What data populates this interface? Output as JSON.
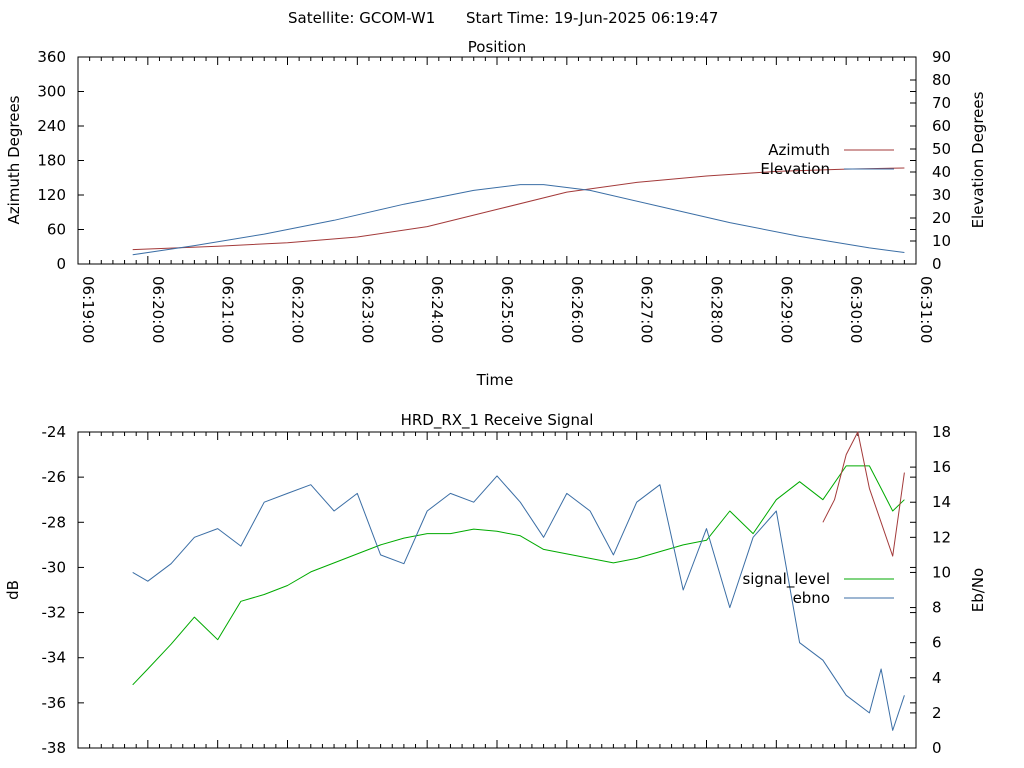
{
  "header": {
    "satellite": "Satellite: GCOM-W1",
    "start_time": "Start Time: 19-Jun-2025 06:19:47"
  },
  "chart_data": [
    {
      "type": "line",
      "title": "Position",
      "xlabel": "Time",
      "ylabel": "Azimuth Degrees",
      "ylabel_right": "Elevation Degrees",
      "x_ticks": [
        "06:19:00",
        "06:20:00",
        "06:21:00",
        "06:22:00",
        "06:23:00",
        "06:24:00",
        "06:25:00",
        "06:26:00",
        "06:27:00",
        "06:28:00",
        "06:29:00",
        "06:30:00",
        "06:31:00"
      ],
      "y_ticks": [
        "0",
        "60",
        "120",
        "180",
        "240",
        "300",
        "360"
      ],
      "y2_ticks": [
        "0",
        "10",
        "20",
        "30",
        "40",
        "50",
        "60",
        "70",
        "80",
        "90"
      ],
      "xlim_seconds": [
        0,
        720
      ],
      "ylim": [
        0,
        360
      ],
      "y2lim": [
        0,
        90
      ],
      "grid": false,
      "legend_position": "right",
      "series": [
        {
          "name": "Azimuth",
          "axis": "left",
          "color": "#a33a3a",
          "x_seconds": [
            47,
            120,
            180,
            240,
            300,
            360,
            420,
            480,
            540,
            600,
            660,
            710
          ],
          "values": [
            25,
            31,
            37,
            47,
            65,
            95,
            125,
            142,
            153,
            161,
            165,
            167
          ]
        },
        {
          "name": "Elevation",
          "axis": "right",
          "color": "#3b6ea5",
          "x_seconds": [
            47,
            100,
            160,
            220,
            280,
            340,
            380,
            400,
            440,
            500,
            560,
            620,
            680,
            710
          ],
          "values": [
            4,
            8,
            13,
            19,
            26,
            32,
            34.5,
            34.5,
            32,
            25,
            18,
            12,
            7,
            5
          ]
        }
      ]
    },
    {
      "type": "line",
      "title": "HRD_RX_1 Receive Signal",
      "xlabel": "",
      "ylabel": "dB",
      "ylabel_right": "Eb/No",
      "y_ticks": [
        "-24",
        "-26",
        "-28",
        "-30",
        "-32",
        "-34",
        "-36",
        "-38"
      ],
      "y2_ticks": [
        "0",
        "2",
        "4",
        "6",
        "8",
        "10",
        "12",
        "14",
        "16",
        "18"
      ],
      "xlim_seconds": [
        0,
        720
      ],
      "ylim": [
        -38,
        -24
      ],
      "y2lim": [
        0,
        18
      ],
      "grid": false,
      "legend_position": "right",
      "series": [
        {
          "name": "signal_level",
          "axis": "left",
          "color": "#00aa00",
          "x_seconds": [
            47,
            60,
            80,
            100,
            120,
            140,
            160,
            180,
            200,
            220,
            240,
            260,
            280,
            300,
            320,
            340,
            360,
            380,
            400,
            420,
            440,
            460,
            480,
            500,
            520,
            540,
            560,
            580,
            600,
            620,
            640,
            660,
            680,
            690,
            700,
            710
          ],
          "values": [
            -35.2,
            -34.5,
            -33.4,
            -32.2,
            -33.2,
            -31.5,
            -31.2,
            -30.8,
            -30.2,
            -29.8,
            -29.4,
            -29.0,
            -28.7,
            -28.5,
            -28.5,
            -28.3,
            -28.4,
            -28.6,
            -29.2,
            -29.4,
            -29.6,
            -29.8,
            -29.6,
            -29.3,
            -29.0,
            -28.8,
            -27.5,
            -28.5,
            -27.0,
            -26.2,
            -27.0,
            -25.5,
            -25.5,
            -26.5,
            -27.5,
            -27.0
          ]
        },
        {
          "name": "ebno",
          "axis": "right",
          "color": "#3b6ea5",
          "x_seconds": [
            47,
            60,
            80,
            100,
            120,
            140,
            160,
            180,
            200,
            220,
            240,
            260,
            280,
            300,
            320,
            340,
            360,
            380,
            400,
            420,
            440,
            460,
            480,
            500,
            520,
            540,
            560,
            580,
            600,
            620,
            640,
            660,
            680,
            690,
            700,
            710
          ],
          "values": [
            10.0,
            9.5,
            10.5,
            12.0,
            12.5,
            11.5,
            14.0,
            14.5,
            15.0,
            13.5,
            14.5,
            11.0,
            10.5,
            13.5,
            14.5,
            14.0,
            15.5,
            14.0,
            12.0,
            14.5,
            13.5,
            11.0,
            14.0,
            15.0,
            9.0,
            12.5,
            8.0,
            12.0,
            13.5,
            6.0,
            5.0,
            3.0,
            2.0,
            4.5,
            1.0,
            3.0
          ]
        },
        {
          "name": "",
          "axis": "left",
          "color": "#a33a3a",
          "x_seconds": [
            640,
            650,
            660,
            670,
            680,
            690,
            700,
            710
          ],
          "values": [
            -28.0,
            -27.0,
            -25.0,
            -24.0,
            -26.5,
            -28.0,
            -29.5,
            -25.8
          ]
        }
      ]
    }
  ]
}
